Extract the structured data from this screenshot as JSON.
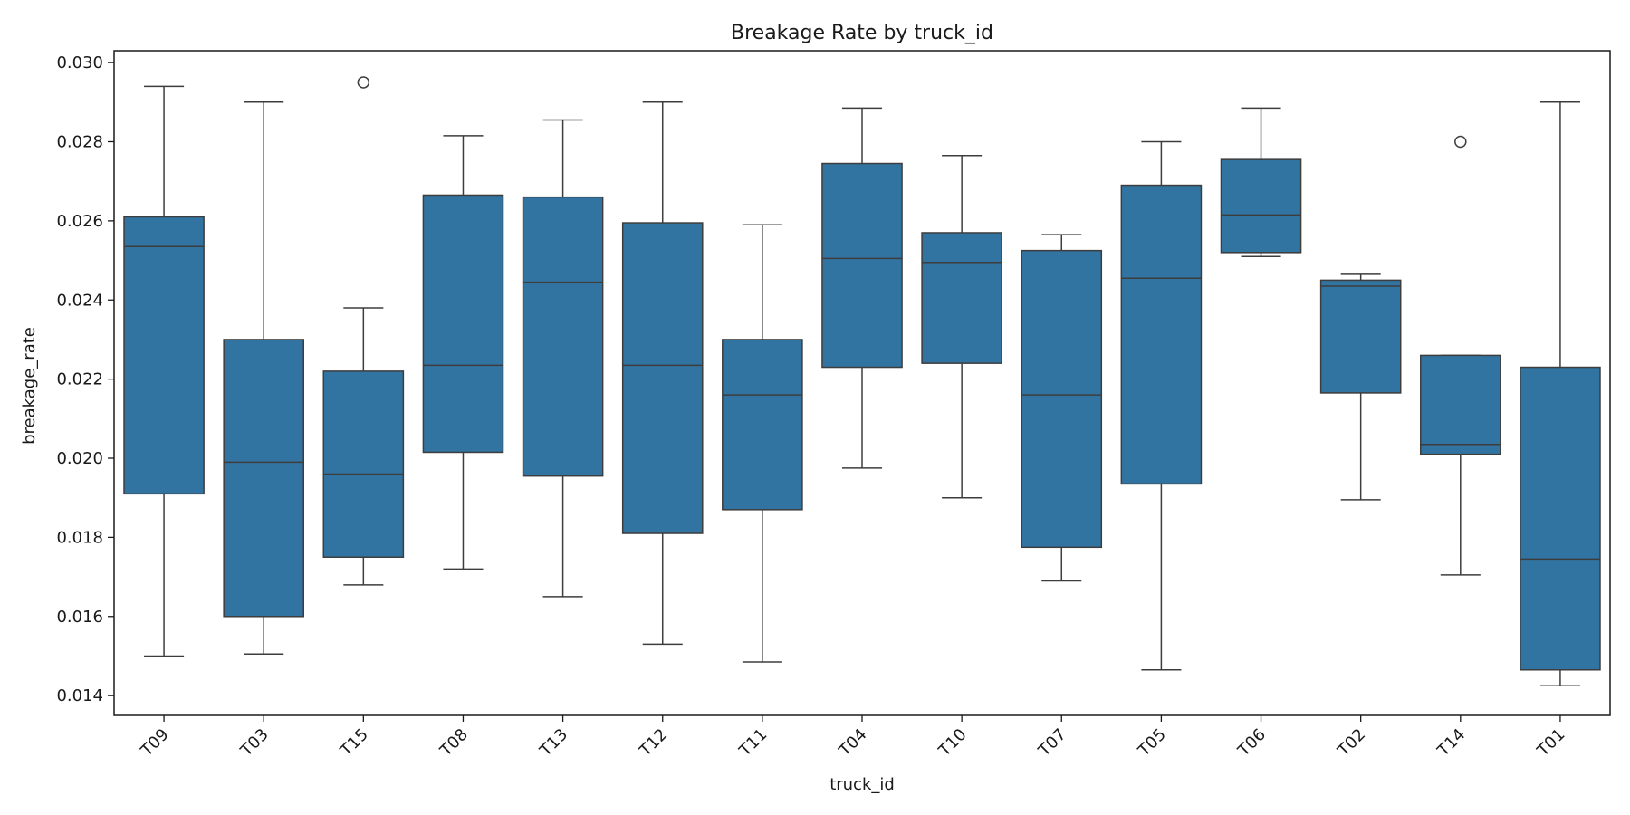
{
  "chart_data": {
    "type": "box",
    "title": "Breakage Rate by truck_id",
    "xlabel": "truck_id",
    "ylabel": "breakage_rate",
    "ylim": [
      0.0135,
      0.0303
    ],
    "yticks": [
      "0.014",
      "0.016",
      "0.018",
      "0.020",
      "0.022",
      "0.024",
      "0.026",
      "0.028",
      "0.030"
    ],
    "grid": false,
    "box_color": "#3274a1",
    "line_color": "#3d3d3d",
    "categories": [
      "T09",
      "T03",
      "T15",
      "T08",
      "T13",
      "T12",
      "T11",
      "T04",
      "T10",
      "T07",
      "T05",
      "T06",
      "T02",
      "T14",
      "T01"
    ],
    "boxes": [
      {
        "label": "T09",
        "whislo": 0.015,
        "q1": 0.0191,
        "med": 0.02535,
        "q3": 0.0261,
        "whishi": 0.0294,
        "fliers": []
      },
      {
        "label": "T03",
        "whislo": 0.01505,
        "q1": 0.016,
        "med": 0.0199,
        "q3": 0.023,
        "whishi": 0.029,
        "fliers": []
      },
      {
        "label": "T15",
        "whislo": 0.0168,
        "q1": 0.0175,
        "med": 0.0196,
        "q3": 0.0222,
        "whishi": 0.0238,
        "fliers": [
          0.0295
        ]
      },
      {
        "label": "T08",
        "whislo": 0.0172,
        "q1": 0.02015,
        "med": 0.02235,
        "q3": 0.02665,
        "whishi": 0.02815,
        "fliers": []
      },
      {
        "label": "T13",
        "whislo": 0.0165,
        "q1": 0.01955,
        "med": 0.02445,
        "q3": 0.0266,
        "whishi": 0.02855,
        "fliers": []
      },
      {
        "label": "T12",
        "whislo": 0.0153,
        "q1": 0.0181,
        "med": 0.02235,
        "q3": 0.02595,
        "whishi": 0.029,
        "fliers": []
      },
      {
        "label": "T11",
        "whislo": 0.01485,
        "q1": 0.0187,
        "med": 0.0216,
        "q3": 0.023,
        "whishi": 0.0259,
        "fliers": []
      },
      {
        "label": "T04",
        "whislo": 0.01975,
        "q1": 0.0223,
        "med": 0.02505,
        "q3": 0.02745,
        "whishi": 0.02885,
        "fliers": []
      },
      {
        "label": "T10",
        "whislo": 0.019,
        "q1": 0.0224,
        "med": 0.02495,
        "q3": 0.0257,
        "whishi": 0.02765,
        "fliers": []
      },
      {
        "label": "T07",
        "whislo": 0.0169,
        "q1": 0.01775,
        "med": 0.0216,
        "q3": 0.02525,
        "whishi": 0.02565,
        "fliers": []
      },
      {
        "label": "T05",
        "whislo": 0.01465,
        "q1": 0.01935,
        "med": 0.02455,
        "q3": 0.0269,
        "whishi": 0.028,
        "fliers": []
      },
      {
        "label": "T06",
        "whislo": 0.0251,
        "q1": 0.0252,
        "med": 0.02615,
        "q3": 0.02755,
        "whishi": 0.02885,
        "fliers": []
      },
      {
        "label": "T02",
        "whislo": 0.01895,
        "q1": 0.02165,
        "med": 0.02435,
        "q3": 0.0245,
        "whishi": 0.02465,
        "fliers": []
      },
      {
        "label": "T14",
        "whislo": 0.01705,
        "q1": 0.0201,
        "med": 0.02035,
        "q3": 0.0226,
        "whishi": 0.0226,
        "fliers": [
          0.028
        ]
      },
      {
        "label": "T01",
        "whislo": 0.01425,
        "q1": 0.01465,
        "med": 0.01745,
        "q3": 0.0223,
        "whishi": 0.029,
        "fliers": []
      }
    ]
  }
}
